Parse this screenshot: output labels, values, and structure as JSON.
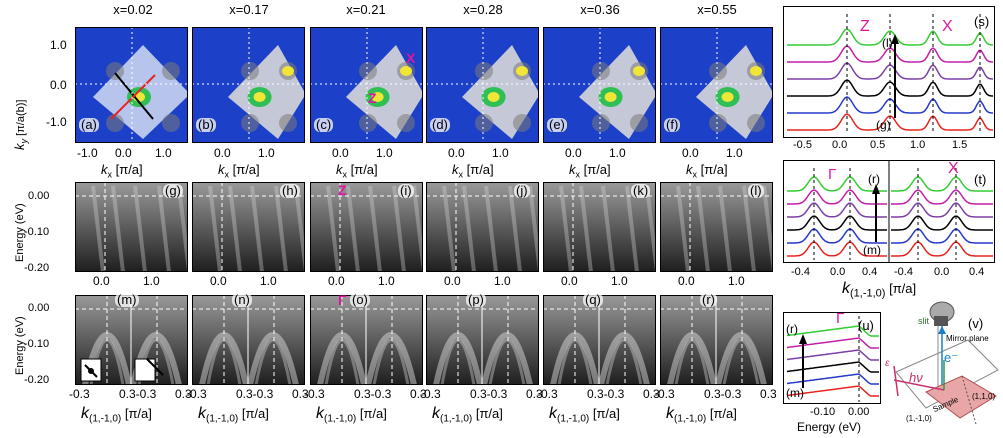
{
  "headers": [
    "x=0.02",
    "x=0.17",
    "x=0.21",
    "x=0.28",
    "x=0.36",
    "x=0.55"
  ],
  "row1": {
    "panel_tags": [
      "(a)",
      "(b)",
      "(c)",
      "(d)",
      "(e)",
      "(f)"
    ],
    "y_ticks": [
      "1.0",
      "0.0",
      "-1.0"
    ],
    "x_ticks": [
      "-1.0",
      "0.0",
      "1.0"
    ],
    "y_label": "k",
    "y_label_sub": "y",
    "y_label_unit": "[π/a(b)]",
    "x_label": "k",
    "x_label_sub": "x",
    "x_label_unit": "[π/a]",
    "symbols_c": [
      "X",
      "Z"
    ]
  },
  "row2": {
    "panel_tags": [
      "(g)",
      "(h)",
      "(i)",
      "(j)",
      "(k)",
      "(l)"
    ],
    "y_ticks": [
      "0.00",
      "-0.10",
      "-0.20"
    ],
    "x_ticks": [
      "0.0",
      "1.0"
    ],
    "y_label": "Energy (eV)",
    "symbol_i": "Z"
  },
  "row3": {
    "panel_tags": [
      "(m)",
      "(n)",
      "(o)",
      "(p)",
      "(q)",
      "(r)"
    ],
    "y_ticks": [
      "0.00",
      "-0.10",
      "-0.20"
    ],
    "x_ticks": [
      "-0.3",
      "0.3-0.3",
      "0.3"
    ],
    "y_label": "Energy (eV)",
    "x_label": "k",
    "x_label_sub": "(1,-1,0)",
    "x_label_unit": "[π/a]",
    "symbol_o": "Γ"
  },
  "right": {
    "s": {
      "tag": "(s)",
      "sym_z": "Z",
      "sym_x": "X",
      "arrow_top": "(l)",
      "arrow_bottom": "(g)",
      "x_ticks": [
        "-0.5",
        "0.0",
        "0.5",
        "1.0",
        "1.5"
      ]
    },
    "t": {
      "tag": "(t)",
      "sym_g": "Γ",
      "sym_x": "X",
      "arrow_top": "(r)",
      "arrow_bottom": "(m)",
      "x_ticks": [
        "-0.4",
        "0.0",
        "0.4",
        "-0.4",
        "0.0",
        "0.4"
      ],
      "x_label": "k",
      "x_label_sub": "(1,-1,0)",
      "x_label_unit": "[π/a]"
    },
    "u": {
      "tag": "(u)",
      "sym_g": "Γ",
      "arrow_top": "(r)",
      "arrow_bottom": "(m)",
      "x_ticks": [
        "-0.10",
        "0.00"
      ],
      "x_label": "Energy (eV)"
    },
    "v": {
      "tag": "(v)",
      "slit": "slit",
      "mirror": "Mirror plane",
      "electron": "e⁻",
      "hv": "hν",
      "eps": "ε",
      "sample": "Sample",
      "dir1": "(1,1,0)",
      "dir2": "(1,-1,0)"
    }
  },
  "colors": {
    "curves": [
      "#e8231f",
      "#2538c9",
      "#000000",
      "#7b3fa6",
      "#c21fa8",
      "#33cc33"
    ],
    "accent": "#e0179d",
    "map_bg": "#1d40c8"
  }
}
